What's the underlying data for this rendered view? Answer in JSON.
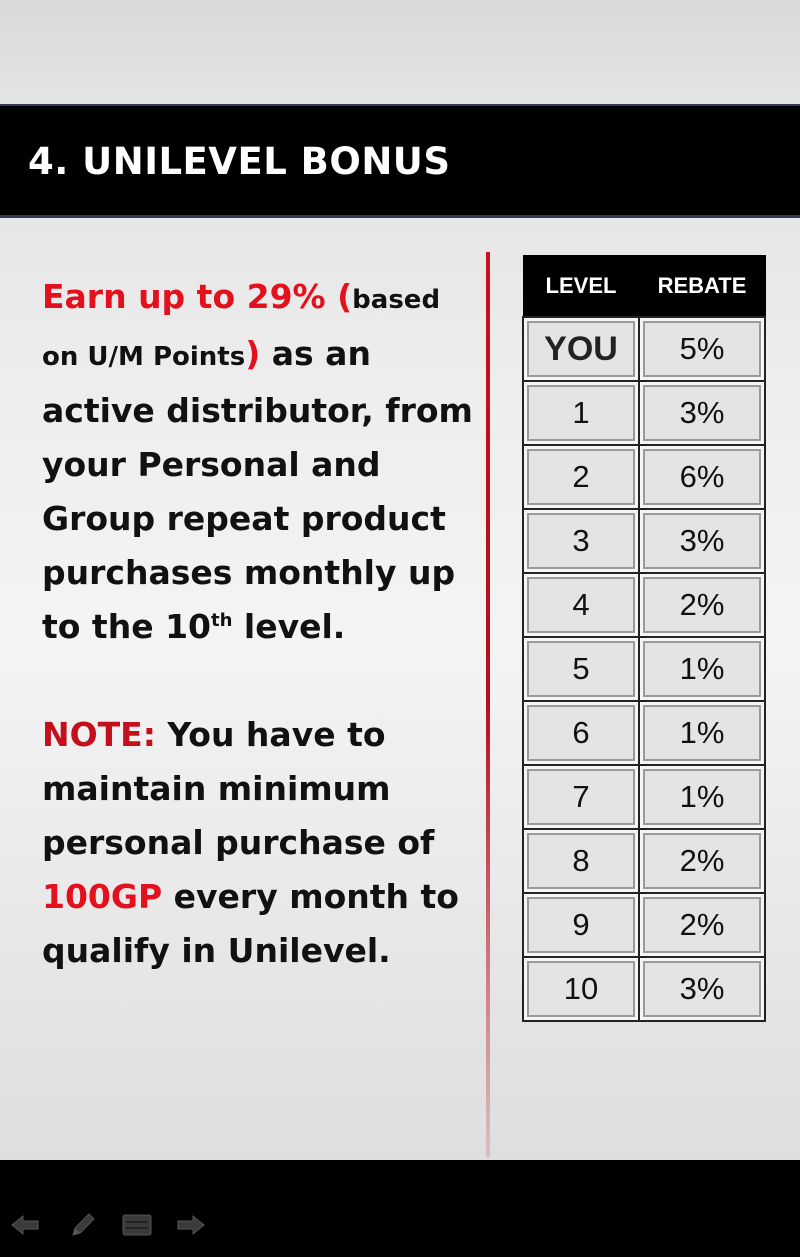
{
  "slide": {
    "title": "4. UNILEVEL BONUS",
    "body": {
      "earn_prefix": "Earn up to 29% (",
      "earn_based": "based on U/M Points",
      "earn_close": ")",
      "earn_rest": " as an active distributor, from your Personal and Group repeat product purchases monthly up to the 10",
      "sup": "th",
      "earn_tail": " level.",
      "note_label": "NOTE:",
      "note_text": " You have to maintain minimum personal purchase of ",
      "note_amount": "100GP",
      "note_tail": "  every month to qualify in Unilevel."
    },
    "table": {
      "headers": [
        "LEVEL",
        "REBATE"
      ],
      "rows": [
        [
          "YOU",
          "5%"
        ],
        [
          "1",
          "3%"
        ],
        [
          "2",
          "6%"
        ],
        [
          "3",
          "3%"
        ],
        [
          "4",
          "2%"
        ],
        [
          "5",
          "1%"
        ],
        [
          "6",
          "1%"
        ],
        [
          "7",
          "1%"
        ],
        [
          "8",
          "2%"
        ],
        [
          "9",
          "2%"
        ],
        [
          "10",
          "3%"
        ]
      ]
    }
  },
  "controls": {
    "icons": [
      "back-arrow-icon",
      "pen-icon",
      "menu-icon",
      "forward-arrow-icon"
    ]
  },
  "colors": {
    "accent_red": "#e3101e",
    "title_bar": "#000000"
  }
}
